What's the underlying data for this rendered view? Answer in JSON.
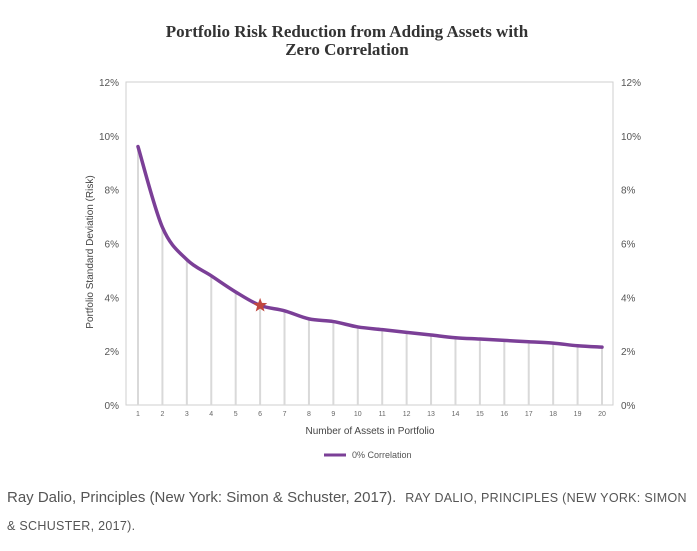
{
  "chart_data": {
    "type": "line",
    "title_lines": [
      "Portfolio Risk Reduction from Adding Assets with",
      "Zero Correlation"
    ],
    "xlabel": "Number of Assets in Portfolio",
    "ylabel": "Portfolio Standard Deviation (Risk)",
    "x": [
      "1",
      "2",
      "3",
      "4",
      "5",
      "6",
      "7",
      "8",
      "9",
      "10",
      "11",
      "12",
      "13",
      "14",
      "15",
      "16",
      "17",
      "18",
      "19",
      "20"
    ],
    "xlim": [
      1,
      20
    ],
    "ylim": [
      0,
      12
    ],
    "y_ticks": [
      "0%",
      "2%",
      "4%",
      "6%",
      "8%",
      "10%",
      "12%"
    ],
    "secondary_y_ticks": [
      "0%",
      "2%",
      "4%",
      "6%",
      "8%",
      "10%",
      "12%"
    ],
    "grid": "vertical",
    "legend_position": "bottom",
    "series": [
      {
        "name": "0% Correlation",
        "color": "#7b3f97",
        "values": [
          9.6,
          6.6,
          5.4,
          4.8,
          4.2,
          3.7,
          3.5,
          3.2,
          3.1,
          2.9,
          2.8,
          2.7,
          2.6,
          2.5,
          2.45,
          2.4,
          2.35,
          2.3,
          2.2,
          2.15
        ]
      }
    ],
    "marker": {
      "x": 6,
      "y": 3.7,
      "shape": "star-icon",
      "color": "#c0473f"
    }
  },
  "caption": {
    "main": "Ray Dalio, Principles (New York: Simon & Schuster, 2017).",
    "credit": "RAY DALIO, PRINCIPLES (NEW YORK: SIMON & SCHUSTER, 2017)."
  }
}
